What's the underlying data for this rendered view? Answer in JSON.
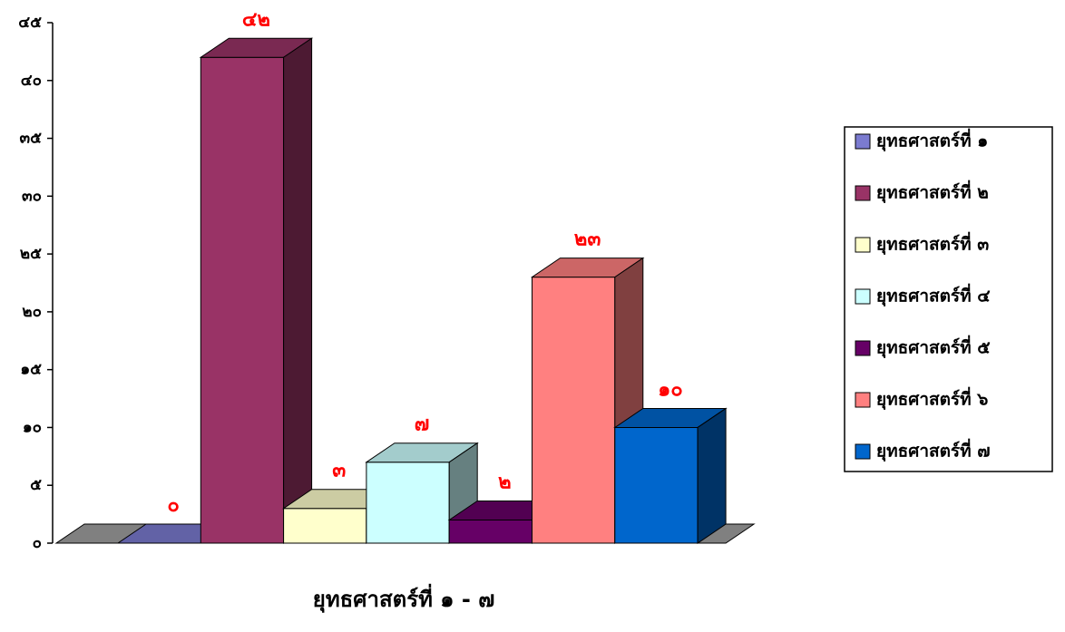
{
  "chart_data": {
    "type": "bar3d",
    "x_label": "ยุทธศาสตร์ที่ ๑ - ๗",
    "categories": [
      "ยุทธศาสตร์ที่ ๑",
      "ยุทธศาสตร์ที่ ๒",
      "ยุทธศาสตร์ที่ ๓",
      "ยุทธศาสตร์ที่ ๔",
      "ยุทธศาสตร์ที่ ๕",
      "ยุทธศาสตร์ที่ ๖",
      "ยุทธศาสตร์ที่ ๗"
    ],
    "values": [
      0,
      42,
      3,
      7,
      2,
      23,
      10
    ],
    "value_labels": [
      "๐",
      "๔๒",
      "๓",
      "๗",
      "๒",
      "๒๓",
      "๑๐"
    ],
    "colors": [
      "#7b7bd0",
      "#993366",
      "#ffffcc",
      "#ccffff",
      "#660066",
      "#ff8080",
      "#0066cc"
    ],
    "ylim": [
      0,
      45
    ],
    "yticks": [
      {
        "value": 0,
        "label": "๐"
      },
      {
        "value": 5,
        "label": "๕"
      },
      {
        "value": 10,
        "label": "๑๐"
      },
      {
        "value": 15,
        "label": "๑๕"
      },
      {
        "value": 20,
        "label": "๒๐"
      },
      {
        "value": 25,
        "label": "๒๕"
      },
      {
        "value": 30,
        "label": "๓๐"
      },
      {
        "value": 35,
        "label": "๓๕"
      },
      {
        "value": 40,
        "label": "๔๐"
      },
      {
        "value": 45,
        "label": "๔๕"
      }
    ],
    "legend": "right"
  }
}
